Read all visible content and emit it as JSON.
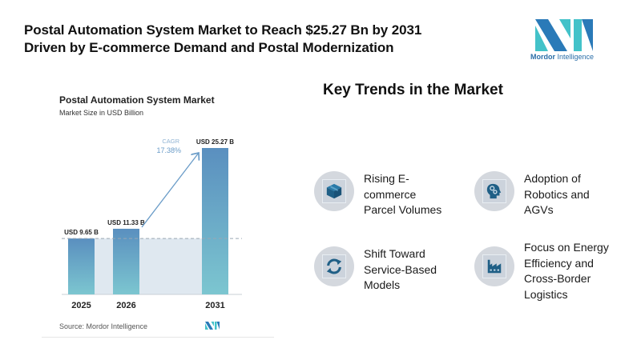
{
  "headline": {
    "line1": "Postal Automation System Market to Reach $25.27 Bn by 2031",
    "line2": "Driven by E-commerce Demand and Postal Modernization"
  },
  "logo": {
    "name_bold": "Mordor",
    "name_rest": "Intelligence",
    "colors": {
      "dark": "#2a7ab8",
      "light": "#43c2c9"
    }
  },
  "trends": {
    "title": "Key Trends in the Market",
    "items": [
      {
        "icon": "package-box-icon",
        "lines": [
          "Rising E-",
          "commerce",
          "Parcel Volumes"
        ]
      },
      {
        "icon": "robotic-head-gears-icon",
        "lines": [
          "Adoption of",
          "Robotics and",
          "AGVs"
        ]
      },
      {
        "icon": "refresh-cycle-icon",
        "lines": [
          "Shift Toward",
          "Service-Based",
          "Models"
        ]
      },
      {
        "icon": "factory-icon",
        "lines": [
          "Focus on Energy",
          "Efficiency and",
          "Cross-Border",
          "Logistics"
        ]
      }
    ],
    "icon_color": "#1f5f86"
  },
  "chart_data": {
    "type": "bar",
    "title": "Postal Automation System Market",
    "subtitle": "Market Size in USD Billion",
    "categories": [
      "2025",
      "2026",
      "2031"
    ],
    "values": [
      9.65,
      11.33,
      25.27
    ],
    "data_labels": [
      "USD 9.65 B",
      "USD 11.33 B",
      "USD 25.27 B"
    ],
    "annotation": {
      "label": "CAGR",
      "value": "17.38%",
      "from": "2026",
      "to": "2031"
    },
    "reference_line": {
      "value": 9.65,
      "style": "dashed"
    },
    "xlabel": "",
    "ylabel": "",
    "ylim": [
      0,
      25.27
    ],
    "grid": false,
    "legend": "none",
    "source": "Source: Mordor Intelligence",
    "colors": {
      "bar_top": "#5a8fbf",
      "bar_bottom": "#7cc6d0",
      "shade": "#dfe8f0",
      "annotation": "#6a9cc8"
    }
  }
}
